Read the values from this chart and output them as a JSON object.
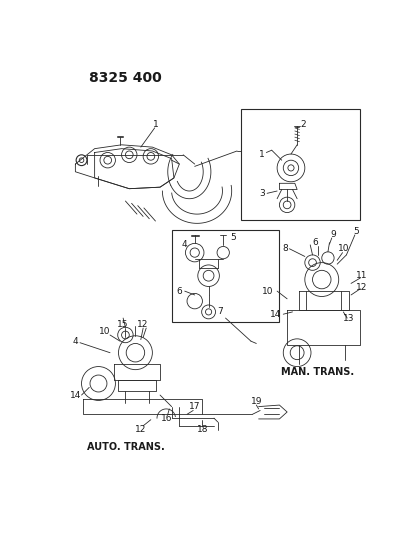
{
  "title": "8325 400",
  "bg_color": "#ffffff",
  "line_color": "#2a2a2a",
  "text_color": "#1a1a1a",
  "title_fontsize": 10,
  "label_fontsize": 6.5,
  "man_trans_label": "MAN. TRANS.",
  "auto_trans_label": "AUTO. TRANS.",
  "figsize": [
    4.1,
    5.33
  ],
  "dpi": 100
}
